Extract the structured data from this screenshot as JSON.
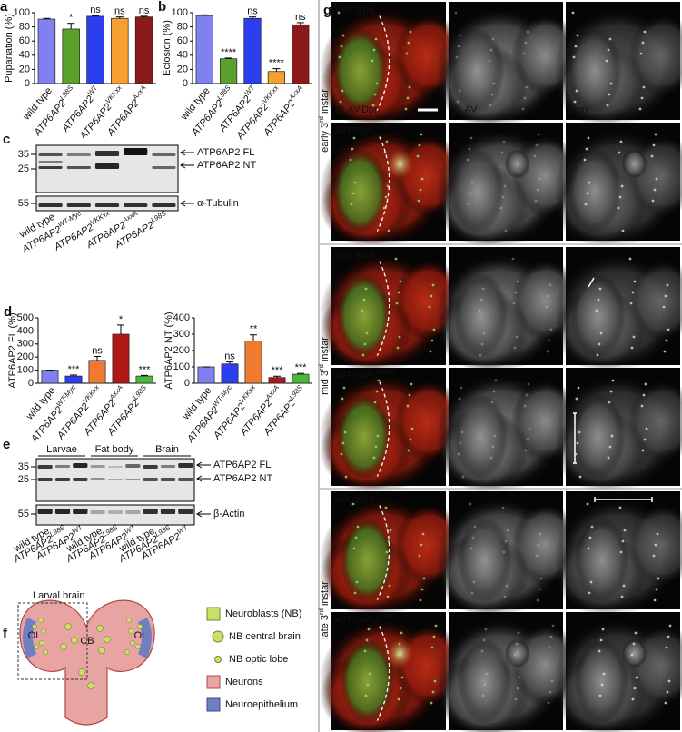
{
  "chart_data": [
    {
      "type": "bar",
      "panel": "a",
      "y_label": "Pupariation (%)",
      "categories": [
        "wild type",
        {
          "text": "ATP6AP2",
          "sup": "L98S"
        },
        {
          "text": "ATP6AP2",
          "sup": "WT"
        },
        {
          "text": "ATP6AP2",
          "sup": "VKKxx"
        },
        {
          "text": "ATP6AP2",
          "sup": "AxxA"
        }
      ],
      "values": [
        91,
        77,
        95,
        92,
        94
      ],
      "errors": [
        1,
        8,
        1,
        2,
        1
      ],
      "colors": [
        "#8080f0",
        "#5aa02c",
        "#2b3ff0",
        "#f5a030",
        "#8b1a1a"
      ],
      "sig_labels": [
        null,
        "*",
        "ns",
        "ns",
        "ns"
      ],
      "sig_colors": [
        null,
        "#5aa02c",
        "#2b3ff0",
        "#f5a030",
        "#8b1a1a"
      ],
      "ylim": [
        0,
        100
      ],
      "yticks": [
        0,
        20,
        40,
        60,
        80,
        100
      ]
    },
    {
      "type": "bar",
      "panel": "b",
      "y_label": "Eclosion (%)",
      "categories": [
        "wild type",
        {
          "text": "ATP6AP2",
          "sup": "L98S"
        },
        {
          "text": "ATP6AP2",
          "sup": "WT"
        },
        {
          "text": "ATP6AP2",
          "sup": "VKKxx"
        },
        {
          "text": "ATP6AP2",
          "sup": "AxxA"
        }
      ],
      "values": [
        96,
        35,
        92,
        17,
        83
      ],
      "errors": [
        1,
        1,
        2,
        4,
        3
      ],
      "colors": [
        "#8080f0",
        "#5aa02c",
        "#2b3ff0",
        "#f5a030",
        "#8b1a1a"
      ],
      "sig_labels": [
        null,
        "****",
        "ns",
        "****",
        "ns"
      ],
      "sig_colors": [
        null,
        "#5aa02c",
        "#2b3ff0",
        "#f5a030",
        "#8b1a1a"
      ],
      "ylim": [
        0,
        100
      ],
      "yticks": [
        0,
        20,
        40,
        60,
        80,
        100
      ]
    },
    {
      "type": "bar",
      "panel": "d",
      "y_label": "ATP6AP2 FL (%)",
      "categories": [
        "wild type",
        {
          "text": "ATP6AP2",
          "sup": "WT-Myc"
        },
        {
          "text": "ATP6AP2",
          "sup": "VKKxx"
        },
        {
          "text": "ATP6AP2",
          "sup": "AxxA"
        },
        {
          "text": "ATP6AP2",
          "sup": "L98S"
        }
      ],
      "values": [
        100,
        55,
        175,
        375,
        55
      ],
      "errors": [
        0,
        8,
        30,
        70,
        5
      ],
      "colors": [
        "#8080f0",
        "#2b3ff0",
        "#f07a30",
        "#b01818",
        "#4cb83a"
      ],
      "sig_labels": [
        null,
        "***",
        "ns",
        "*",
        "***"
      ],
      "sig_colors": [
        null,
        "#2b3ff0",
        "#f5a030",
        "#b01818",
        "#4cb83a"
      ],
      "ylim": [
        0,
        500
      ],
      "yticks": [
        0,
        100,
        200,
        300,
        400,
        500
      ]
    },
    {
      "type": "bar",
      "y_label": "ATP6AP2 NT (%)",
      "categories": [
        "wild type",
        {
          "text": "ATP6AP2",
          "sup": "WT-Myc"
        },
        {
          "text": "ATP6AP2",
          "sup": "VKKxx"
        },
        {
          "text": "ATP6AP2",
          "sup": "AxxA"
        },
        {
          "text": "ATP6AP2",
          "sup": "L98S"
        }
      ],
      "values": [
        100,
        118,
        258,
        35,
        55
      ],
      "errors": [
        0,
        12,
        38,
        8,
        5
      ],
      "colors": [
        "#8080f0",
        "#2b3ff0",
        "#f07a30",
        "#b01818",
        "#4cb83a"
      ],
      "sig_labels": [
        null,
        "ns",
        "**",
        "***",
        "***"
      ],
      "sig_colors": [
        null,
        "#2b3ff0",
        "#f5a030",
        "#8b1a1a",
        "#4cb83a"
      ],
      "ylim": [
        0,
        400
      ],
      "yticks": [
        0,
        100,
        200,
        300,
        400
      ]
    }
  ],
  "blot_c": {
    "panel": "c",
    "markers": [
      35,
      25,
      55
    ],
    "bands": [
      "ATP6AP2 FL",
      "ATP6AP2 NT",
      "α-Tubulin"
    ],
    "lanes": [
      "wild type",
      {
        "text": "ATP6AP2",
        "sup": "WT-Myc"
      },
      {
        "text": "ATP6AP2",
        "sup": "VKKxx"
      },
      {
        "text": "ATP6AP2",
        "sup": "AxxA"
      },
      {
        "text": "ATP6AP2",
        "sup": "L98S"
      }
    ]
  },
  "blot_e": {
    "panel": "e",
    "groups": [
      "Larvae",
      "Fat body",
      "Brain"
    ],
    "markers": [
      35,
      25,
      55
    ],
    "bands": [
      "ATP6AP2 FL",
      "ATP6AP2 NT",
      "β-Actin"
    ],
    "lanes": [
      "wild type",
      {
        "text": "ATP6AP2",
        "sup": "L98S"
      },
      {
        "text": "ATP6AP2",
        "sup": "WT"
      },
      "wild type",
      {
        "text": "ATP6AP2",
        "sup": "L98S"
      },
      {
        "text": "ATP6AP2",
        "sup": "WT"
      },
      "wild type",
      {
        "text": "ATP6AP2",
        "sup": "L98S"
      },
      {
        "text": "ATP6AP2",
        "sup": "WT"
      }
    ]
  },
  "diagram_f": {
    "panel": "f",
    "title": "Larval brain",
    "regions": [
      "OL",
      "CB",
      "OL"
    ],
    "legend": [
      "Neuroblasts (NB)",
      "NB central brain",
      "NB optic lobe",
      "Neurons",
      "Neuroepithelium"
    ]
  },
  "figure_g": {
    "panel": "g",
    "channel_labels": [
      "ELAV",
      "Dpn"
    ],
    "stages": [
      {
        "pre": "early 3",
        "sup": "rd",
        "post": " instar"
      },
      {
        "pre": "mid 3",
        "sup": "rd",
        "post": " instar"
      },
      {
        "pre": "late 3",
        "sup": "rd",
        "post": " instar"
      }
    ],
    "rows": [
      "wild type",
      {
        "text": "ATP6AP2",
        "sup": "L98S"
      },
      "wild type",
      {
        "text": "ATP6AP2",
        "sup": "L98S"
      },
      "wild type",
      {
        "text": "ATP6AP2",
        "sup": "L98S"
      }
    ]
  }
}
